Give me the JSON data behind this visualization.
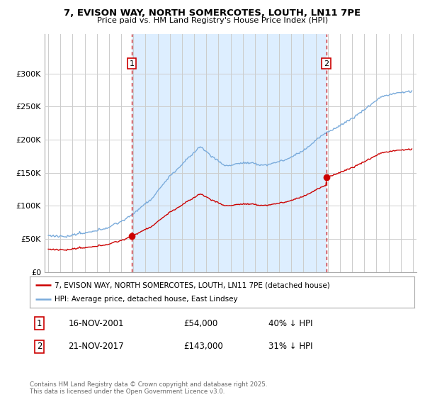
{
  "title_line1": "7, EVISON WAY, NORTH SOMERCOTES, LOUTH, LN11 7PE",
  "title_line2": "Price paid vs. HM Land Registry's House Price Index (HPI)",
  "legend_line1": "7, EVISON WAY, NORTH SOMERCOTES, LOUTH, LN11 7PE (detached house)",
  "legend_line2": "HPI: Average price, detached house, East Lindsey",
  "sale1_date": "16-NOV-2001",
  "sale1_price": 54000,
  "sale1_label": "1",
  "sale1_pct": "40% ↓ HPI",
  "sale2_date": "21-NOV-2017",
  "sale2_price": 143000,
  "sale2_label": "2",
  "sale2_pct": "31% ↓ HPI",
  "footnote": "Contains HM Land Registry data © Crown copyright and database right 2025.\nThis data is licensed under the Open Government Licence v3.0.",
  "prop_color": "#cc0000",
  "hpi_color": "#7aabdb",
  "shade_color": "#ddeeff",
  "vline_color": "#cc0000",
  "grid_color": "#cccccc",
  "background_color": "#ffffff",
  "ylim": [
    0,
    360000
  ],
  "yticks": [
    0,
    50000,
    100000,
    150000,
    200000,
    250000,
    300000
  ],
  "sale1_x": 2001.88,
  "sale2_x": 2017.88,
  "xmin": 1994.7,
  "xmax": 2025.3
}
